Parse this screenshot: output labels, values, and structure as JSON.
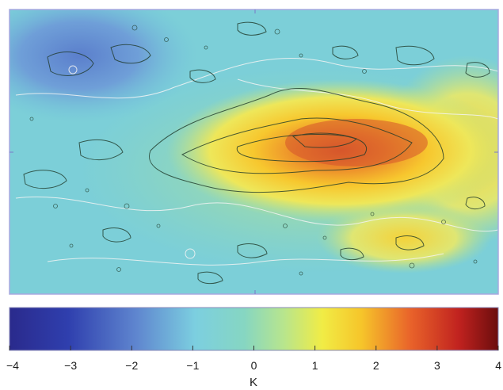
{
  "chart_data": {
    "type": "heatmap",
    "title": "",
    "xlabel": "",
    "ylabel": "",
    "colorbar": {
      "label": "K",
      "range": [
        -4,
        4
      ],
      "ticks": [
        -4,
        -3,
        -2,
        -1,
        0,
        1,
        2,
        3,
        4
      ],
      "tick_labels": [
        "−4",
        "−3",
        "−2",
        "−1",
        "0",
        "1",
        "2",
        "3",
        "4"
      ],
      "colormap": "jet",
      "orientation": "horizontal",
      "placement": "bottom"
    },
    "overlays": {
      "white_contours": "temperature anomaly isolines",
      "black_contours": "positive anomaly feature contours"
    },
    "colors": {
      "cold_min": "#2b2b8f",
      "neutral": "#6ccfd6",
      "zero": "#9fe0a0",
      "warm": "#f5e03a",
      "hot_max": "#7a0e0e",
      "frame": "#a8a8e0"
    }
  }
}
